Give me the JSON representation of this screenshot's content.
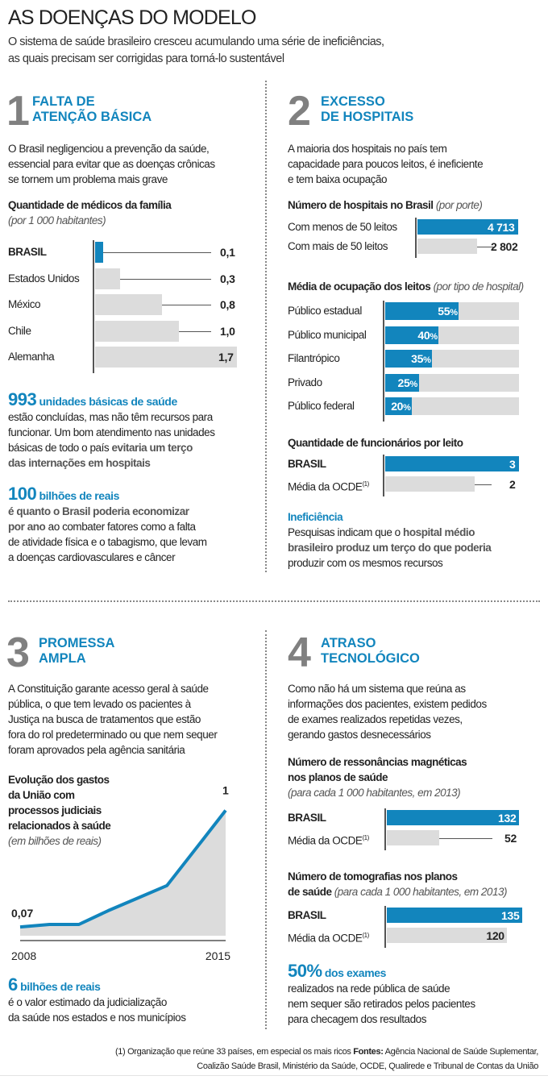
{
  "header": {
    "title": "AS DOENÇAS DO MODELO",
    "subtitle_line1": "O sistema de saúde brasileiro cresceu acumulando uma série de ineficiências,",
    "subtitle_line2": "as quais precisam ser corrigidas para torná-lo sustentável"
  },
  "colors": {
    "accent": "#1285bd",
    "bar_gray": "#dcdcdc",
    "number_gray": "#808080"
  },
  "sections": {
    "s1": {
      "number": "1",
      "title_line1": "FALTA DE",
      "title_line2": "ATENÇÃO BÁSICA",
      "intro": [
        "O Brasil negligenciou a prevenção da saúde,",
        "essencial para evitar que as doenças crônicas",
        "se tornem um problema mais grave"
      ],
      "callout1": {
        "number": "993",
        "headline": "unidades básicas de saúde",
        "line1": "estão concluídas, mas não têm recursos para",
        "line2": "funcionar. Um bom atendimento nas unidades",
        "line3_plain": "básicas de todo o país ",
        "line3_bold": "evitaria um terço",
        "line4_bold": "das internações em hospitais"
      },
      "callout2": {
        "number": "100",
        "headline": "bilhões de reais",
        "line1_bold": "é quanto o Brasil poderia economizar",
        "line2_bold": "por ano",
        "line2_plain": " ao combater fatores como a falta",
        "line3": "de atividade física e o tabagismo, que levam",
        "line4": "a doenças cardiovasculares e câncer"
      }
    },
    "s2": {
      "number": "2",
      "title_line1": "EXCESSO",
      "title_line2": "DE HOSPITAIS",
      "intro": [
        "A maioria dos hospitais no país tem",
        "capacidade para poucos leitos, é ineficiente",
        "e tem baixa ocupação"
      ],
      "callout": {
        "headline": "Ineficiência",
        "line1_plain": "Pesquisas indicam que o ",
        "line1_bold": "hospital médio",
        "line2_bold": "brasileiro produz um terço do que poderia",
        "line3": "produzir com os mesmos recursos"
      }
    },
    "s3": {
      "number": "3",
      "title_line1": "PROMESSA",
      "title_line2": "AMPLA",
      "intro": [
        "A Constituição garante acesso geral à saúde",
        "pública, o que tem levado os pacientes à",
        "Justiça na busca de tratamentos que estão",
        "fora do rol predeterminado ou que nem sequer",
        "foram aprovados pela agência sanitária"
      ],
      "callout": {
        "number": "6",
        "headline": "bilhões de reais",
        "line1": "é o valor estimado da judicialização",
        "line2": "da saúde nos estados e nos municípios"
      }
    },
    "s4": {
      "number": "4",
      "title_line1": "ATRASO",
      "title_line2": "TECNOLÓGICO",
      "intro": [
        "Como não há um sistema que reúna as",
        "informações dos pacientes, existem pedidos",
        "de exames realizados repetidas vezes,",
        "gerando gastos desnecessários"
      ],
      "callout": {
        "number": "50%",
        "headline": "dos exames",
        "line1": "realizados na rede pública de saúde",
        "line2": "nem sequer são retirados pelos pacientes",
        "line3": "para checagem dos resultados"
      }
    }
  },
  "chart_data": [
    {
      "id": "medicos",
      "type": "bar",
      "title": "Quantidade de médicos da família",
      "subtitle": "(por 1 000 habitantes)",
      "categories": [
        "BRASIL",
        "Estados Unidos",
        "México",
        "Chile",
        "Alemanha"
      ],
      "values": [
        0.1,
        0.3,
        0.8,
        1.0,
        1.7
      ],
      "labels": [
        "0,1",
        "0,3",
        "0,8",
        "1,0",
        "1,7"
      ],
      "xlim": [
        0,
        1.7
      ],
      "highlight": "BRASIL"
    },
    {
      "id": "hospitais",
      "type": "bar",
      "title": "Número de hospitais no Brasil",
      "subtitle": "(por porte)",
      "categories": [
        "Com menos de 50 leitos",
        "Com mais de 50 leitos"
      ],
      "values": [
        4713,
        2802
      ],
      "labels": [
        "4 713",
        "2 802"
      ],
      "xlim": [
        0,
        4713
      ]
    },
    {
      "id": "ocupacao",
      "type": "bar",
      "title": "Média de ocupação dos leitos",
      "subtitle": "(por tipo de hospital)",
      "categories": [
        "Público estadual",
        "Público municipal",
        "Filantrópico",
        "Privado",
        "Público federal"
      ],
      "values": [
        55,
        40,
        35,
        25,
        20
      ],
      "labels": [
        "55",
        "40",
        "35",
        "25",
        "20"
      ],
      "unit": "%",
      "xlim": [
        0,
        100
      ]
    },
    {
      "id": "funcionarios",
      "type": "bar",
      "title": "Quantidade de funcionários por leito",
      "categories": [
        "BRASIL",
        "Média da OCDE"
      ],
      "footnote_marks": [
        "",
        "(1)"
      ],
      "values": [
        3,
        2
      ],
      "labels": [
        "3",
        "2"
      ],
      "xlim": [
        0,
        3
      ]
    },
    {
      "id": "gastos",
      "type": "area",
      "title_lines": [
        "Evolução dos gastos",
        "da União com",
        "processos judiciais",
        "relacionados à saúde"
      ],
      "subtitle": "(em bilhões de reais)",
      "x": [
        2008,
        2009,
        2010,
        2011,
        2012,
        2013,
        2014,
        2015
      ],
      "y": [
        0.07,
        0.09,
        0.09,
        0.2,
        0.3,
        0.4,
        0.7,
        1.0
      ],
      "start_label": "0,07",
      "end_label": "1",
      "xtick_labels": [
        "2008",
        "2015"
      ],
      "ylim": [
        0,
        1.1
      ]
    },
    {
      "id": "ressonancias",
      "type": "bar",
      "title_lines": [
        "Número de ressonâncias magnéticas",
        "nos planos de saúde"
      ],
      "subtitle": "(para cada 1 000 habitantes, em 2013)",
      "categories": [
        "BRASIL",
        "Média da OCDE"
      ],
      "footnote_marks": [
        "",
        "(1)"
      ],
      "values": [
        132,
        52
      ],
      "labels": [
        "132",
        "52"
      ],
      "xlim": [
        0,
        132
      ]
    },
    {
      "id": "tomografias",
      "type": "bar",
      "title_lines": [
        "Número de tomografias nos planos",
        "de saúde"
      ],
      "subtitle": "(para cada 1 000 habitantes, em 2013)",
      "categories": [
        "BRASIL",
        "Média da OCDE"
      ],
      "footnote_marks": [
        "",
        "(1)"
      ],
      "values": [
        135,
        120
      ],
      "labels": [
        "135",
        "120"
      ],
      "xlim": [
        0,
        135
      ]
    }
  ],
  "footer": {
    "note": "(1) Organização que reúne 33 países, em especial os mais ricos",
    "sources_label": "Fontes:",
    "sources_line1": "Agência Nacional de Saúde Suplementar,",
    "sources_line2": "Coalizão Saúde Brasil, Ministério da Saúde, OCDE, Qualirede e Tribunal de Contas da União"
  }
}
